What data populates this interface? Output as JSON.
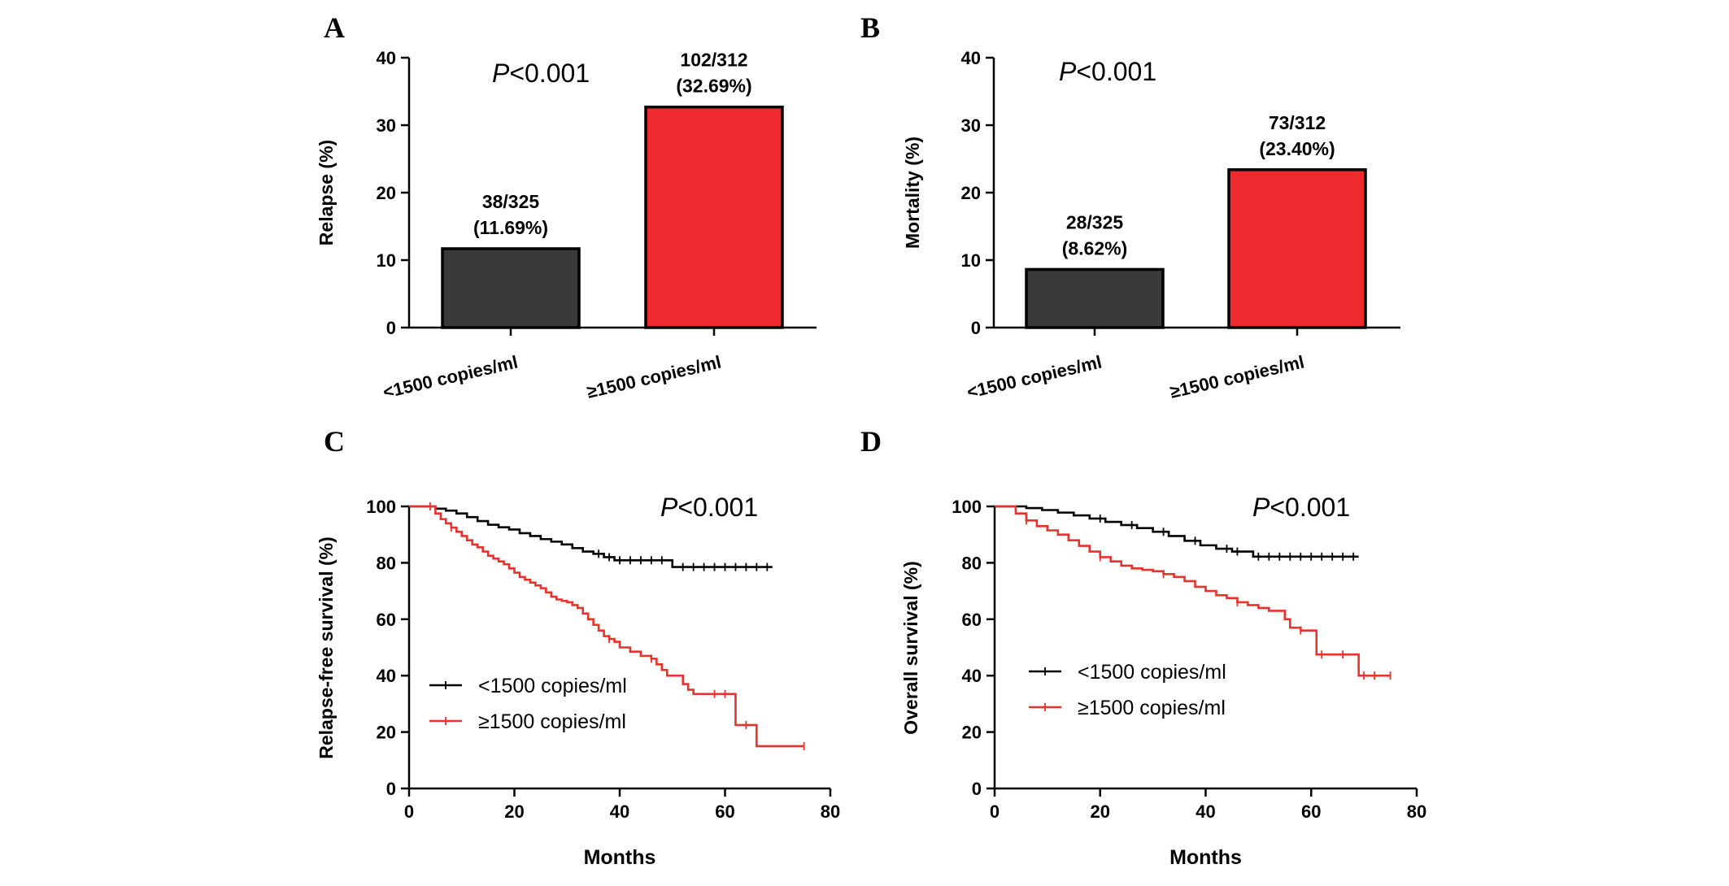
{
  "chart_data": [
    {
      "panel": "A",
      "type": "bar",
      "ylabel": "Relapse (%)",
      "ylim": [
        0,
        40
      ],
      "yticks": [
        0,
        10,
        20,
        30,
        40
      ],
      "categories": [
        "<1500 copies/ml",
        "≥1500 copies/ml"
      ],
      "values": [
        11.69,
        32.69
      ],
      "data_labels": [
        [
          "38/325",
          "(11.69%)"
        ],
        [
          "102/312",
          "(32.69%)"
        ]
      ],
      "colors": [
        "#3a3a3a",
        "#ee2a2e"
      ],
      "annotation": {
        "italic": "P",
        "text": "<0.001"
      },
      "grid": false
    },
    {
      "panel": "B",
      "type": "bar",
      "ylabel": "Mortality (%)",
      "ylim": [
        0,
        40
      ],
      "yticks": [
        0,
        10,
        20,
        30,
        40
      ],
      "categories": [
        "<1500 copies/ml",
        "≥1500 copies/ml"
      ],
      "values": [
        8.62,
        23.4
      ],
      "data_labels": [
        [
          "28/325",
          "(8.62%)"
        ],
        [
          "73/312",
          "(23.40%)"
        ]
      ],
      "colors": [
        "#3a3a3a",
        "#ee2a2e"
      ],
      "annotation": {
        "italic": "P",
        "text": "<0.001"
      },
      "grid": false
    },
    {
      "panel": "C",
      "type": "line",
      "step": true,
      "xlabel": "Months",
      "ylabel": "Relapse-free survival (%)",
      "xlim": [
        0,
        80
      ],
      "ylim": [
        0,
        100
      ],
      "xticks": [
        0,
        20,
        40,
        60,
        80
      ],
      "yticks": [
        0,
        20,
        40,
        60,
        80,
        100
      ],
      "annotation": {
        "italic": "P",
        "text": "<0.001"
      },
      "legend": "left-middle",
      "grid": false,
      "series": [
        {
          "name": "<1500 copies/ml",
          "color": "#000000",
          "x": [
            0,
            5,
            7,
            9,
            11,
            13,
            15,
            17,
            19,
            21,
            23,
            25,
            27,
            29,
            31,
            33,
            35,
            37,
            39,
            41,
            43,
            45,
            47,
            49,
            50,
            55,
            60,
            65,
            69
          ],
          "y": [
            100,
            99.2,
            98.5,
            97.5,
            96.2,
            94.8,
            93.5,
            92.6,
            91.8,
            90.5,
            89.5,
            88.4,
            87.5,
            86.5,
            85.2,
            84.0,
            83.2,
            82.0,
            80.9,
            80.9,
            80.9,
            80.9,
            80.9,
            80.9,
            78.5,
            78.5,
            78.5,
            78.5,
            78.5
          ],
          "censor_x": [
            36,
            38,
            40,
            42,
            44,
            46,
            48,
            52,
            54,
            56,
            58,
            60,
            62,
            64,
            66,
            68
          ]
        },
        {
          "name": "≥1500 copies/ml",
          "color": "#e8322b",
          "x": [
            0,
            5,
            6,
            7,
            8,
            9,
            10,
            11,
            12,
            13,
            14,
            15,
            16,
            17,
            18,
            19,
            20,
            21,
            22,
            23,
            24,
            25,
            26,
            27,
            28,
            29,
            30,
            31,
            32,
            33,
            34,
            35,
            36,
            37,
            38,
            39,
            40,
            42,
            44,
            46,
            47,
            48,
            49,
            50,
            52,
            53,
            54,
            56,
            58,
            60,
            61,
            62,
            64,
            66,
            70,
            75
          ],
          "y": [
            100,
            97.5,
            95.5,
            94.0,
            92.5,
            91.0,
            89.5,
            88.0,
            86.5,
            85.5,
            84.0,
            82.5,
            81.5,
            80.5,
            79.5,
            78.0,
            76.5,
            75.0,
            74.0,
            73.0,
            72.0,
            71.0,
            69.5,
            68.0,
            67.0,
            66.5,
            66.0,
            65.0,
            64.0,
            62.0,
            60.0,
            58.0,
            56.0,
            54.0,
            53.0,
            52.0,
            50.0,
            48.5,
            47.0,
            46.0,
            44.0,
            42.0,
            40.0,
            40.0,
            37.0,
            35.0,
            33.5,
            33.5,
            33.5,
            33.5,
            33.5,
            22.5,
            22.5,
            15.0,
            15.0,
            15.0
          ],
          "censor_x": [
            4,
            8,
            38,
            46,
            58,
            60,
            64,
            75
          ]
        }
      ]
    },
    {
      "panel": "D",
      "type": "line",
      "step": true,
      "xlabel": "Months",
      "ylabel": "Overall survival (%)",
      "xlim": [
        0,
        80
      ],
      "ylim": [
        0,
        100
      ],
      "xticks": [
        0,
        20,
        40,
        60,
        80
      ],
      "yticks": [
        0,
        20,
        40,
        60,
        80,
        100
      ],
      "annotation": {
        "italic": "P",
        "text": "<0.001"
      },
      "legend": "right-middle",
      "grid": false,
      "series": [
        {
          "name": "<1500 copies/ml",
          "color": "#000000",
          "x": [
            0,
            6,
            9,
            12,
            15,
            18,
            21,
            24,
            27,
            30,
            33,
            36,
            39,
            42,
            45,
            49,
            55,
            60,
            65,
            69
          ],
          "y": [
            100,
            99.4,
            98.7,
            97.8,
            96.8,
            95.7,
            94.5,
            93.4,
            92.3,
            91.0,
            89.5,
            87.8,
            86.2,
            85.0,
            84.0,
            82.2,
            82.2,
            82.2,
            82.2,
            82.2
          ],
          "censor_x": [
            20,
            26,
            32,
            38,
            44,
            46,
            50,
            52,
            54,
            56,
            58,
            60,
            62,
            64,
            66,
            68
          ]
        },
        {
          "name": "≥1500 copies/ml",
          "color": "#e8322b",
          "x": [
            0,
            4,
            6,
            8,
            10,
            12,
            14,
            16,
            18,
            20,
            22,
            24,
            26,
            28,
            30,
            32,
            34,
            36,
            38,
            40,
            42,
            44,
            46,
            48,
            50,
            52,
            54,
            55,
            56,
            58,
            60,
            61,
            64,
            66,
            69,
            75
          ],
          "y": [
            100,
            97.5,
            95.0,
            93.0,
            91.5,
            90.0,
            88.0,
            86.0,
            84.0,
            82.0,
            80.5,
            79.0,
            78.0,
            77.5,
            77.0,
            76.0,
            75.0,
            73.5,
            71.5,
            70.0,
            68.5,
            67.5,
            66.0,
            65.0,
            64.0,
            63.0,
            63.0,
            60.0,
            57.0,
            56.0,
            56.0,
            47.5,
            47.5,
            47.5,
            40.0,
            40.0
          ],
          "censor_x": [
            6,
            20,
            32,
            46,
            58,
            62,
            66,
            70,
            72,
            75
          ]
        }
      ]
    }
  ]
}
